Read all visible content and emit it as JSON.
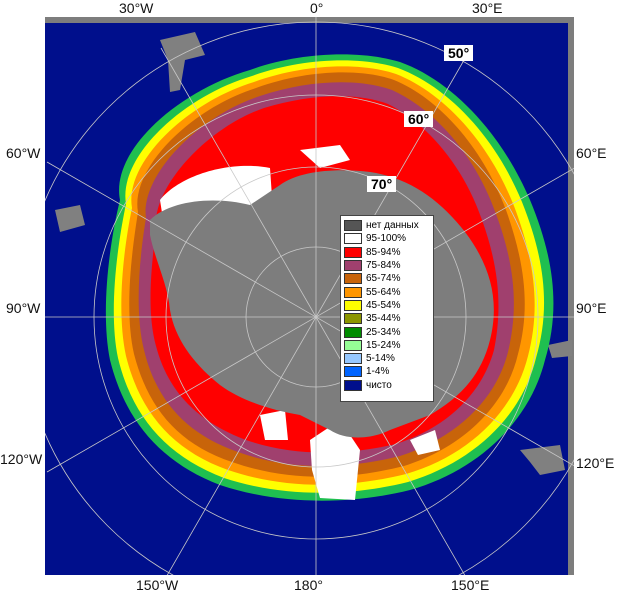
{
  "map": {
    "longitude_labels": {
      "top_left": "30°W",
      "top_center": "0°",
      "top_right": "30°E",
      "left_upper": "60°W",
      "left_middle": "90°W",
      "left_lower": "120°W",
      "right_upper": "60°E",
      "right_middle": "90°E",
      "right_lower": "120°E",
      "bottom_left": "150°W",
      "bottom_center": "180°",
      "bottom_right": "150°E"
    },
    "latitude_labels": [
      "50°",
      "60°",
      "70°"
    ],
    "colors": {
      "ocean": "#000f8c",
      "land": "#7d7d7d",
      "nodata": "#555555",
      "grid": "#c8c8c8"
    }
  },
  "legend": {
    "items": [
      {
        "label": "нет данных",
        "color": "#555555"
      },
      {
        "label": "95-100%",
        "color": "#ffffff"
      },
      {
        "label": "85-94%",
        "color": "#ff0000"
      },
      {
        "label": "75-84%",
        "color": "#a0406e"
      },
      {
        "label": "65-74%",
        "color": "#c8640a"
      },
      {
        "label": "55-64%",
        "color": "#ff9600"
      },
      {
        "label": "45-54%",
        "color": "#ffff00"
      },
      {
        "label": "35-44%",
        "color": "#8c9600"
      },
      {
        "label": "25-34%",
        "color": "#008c00"
      },
      {
        "label": "15-24%",
        "color": "#96ff96"
      },
      {
        "label": "5-14%",
        "color": "#96c8ff"
      },
      {
        "label": "1-4%",
        "color": "#0064ff"
      },
      {
        "label": "чисто",
        "color": "#000f8c"
      }
    ]
  }
}
